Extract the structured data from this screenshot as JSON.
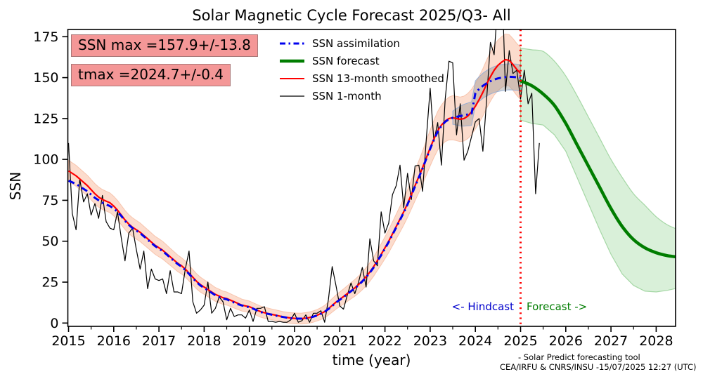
{
  "title": "Solar Magnetic Cycle Forecast 2025/Q3- All",
  "annotations": {
    "ssn_max": "SSN max =157.9+/-13.8",
    "tmax": "tmax =2024.7+/-0.4",
    "hindcast": "<- Hindcast",
    "forecast": "Forecast ->"
  },
  "footer": {
    "line1": "- Solar Predict forecasting tool",
    "line2": "CEA/IRFU & CNRS/INSU -15/07/2025 12:27 (UTC)"
  },
  "colors": {
    "assimilation": "#0000ee",
    "forecast": "#007d00",
    "smoothed": "#ff0000",
    "monthly": "#000000",
    "vline": "#ff0000",
    "orange_band": "rgba(246,140,90,0.30)",
    "green_band": "rgba(120,200,120,0.28)",
    "green_band_edge": "rgba(110,190,110,0.55)",
    "gray_band": "rgba(145,145,145,0.40)",
    "gray_band_edge": "rgba(140,170,215,0.85)",
    "hindcast_text": "#0000cc",
    "forecast_text": "#007d00",
    "box_bg": "rgba(242,128,128,0.82)"
  },
  "chart_data": {
    "type": "line",
    "title": "Solar Magnetic Cycle Forecast 2025/Q3- All",
    "xlabel": "time (year)",
    "ylabel": "SSN",
    "xlim": [
      2014.985,
      2028.43
    ],
    "ylim": [
      -2.0,
      179.4
    ],
    "xticks": [
      2015,
      2016,
      2017,
      2018,
      2019,
      2020,
      2021,
      2022,
      2023,
      2024,
      2025,
      2026,
      2027,
      2028
    ],
    "xminor_step": 0.5,
    "yticks": [
      0,
      25,
      50,
      75,
      100,
      125,
      150,
      175
    ],
    "grid": false,
    "legend_position": "upper center, no frame",
    "legend": [
      {
        "label": "SSN assimilation",
        "color": "#0000ee",
        "style": "dashdot",
        "lw": 3
      },
      {
        "label": "SSN forecast",
        "color": "#007d00",
        "style": "solid",
        "lw": 4.5
      },
      {
        "label": "SSN 13-month smoothed",
        "color": "#ff0000",
        "style": "solid",
        "lw": 2
      },
      {
        "label": "SSN 1-month",
        "color": "#000000",
        "style": "solid",
        "lw": 1.2
      }
    ],
    "vline": {
      "x": 2025.0,
      "style": "dotted",
      "color": "#ff0000",
      "meaning": "hindcast/forecast boundary"
    },
    "series": [
      {
        "name": "SSN 1-month",
        "start": 2015.0,
        "step": 0.0833333,
        "values": [
          110,
          67,
          57,
          88,
          74,
          79,
          66,
          73,
          64,
          78,
          62,
          58,
          57,
          68,
          52,
          38,
          55,
          58,
          45,
          33,
          44,
          21,
          33,
          27,
          26,
          27,
          18,
          32,
          19,
          19,
          18,
          33,
          44,
          13,
          6,
          8,
          11,
          25,
          6,
          9,
          16,
          13,
          2,
          9,
          4,
          5,
          5,
          3,
          8,
          1,
          9,
          9,
          10,
          1,
          1,
          0.5,
          1,
          0.5,
          0.5,
          2,
          6,
          0.5,
          1.5,
          5,
          0.5,
          6,
          6,
          7.5,
          0.5,
          14.5,
          34.5,
          23,
          10.5,
          8.5,
          17,
          24.5,
          18,
          25,
          34,
          22,
          51.5,
          38,
          35,
          68,
          55,
          61,
          78.5,
          84,
          96.5,
          70.5,
          91.5,
          75.5,
          96,
          96.5,
          80.5,
          113,
          143.5,
          111,
          122.5,
          96.5,
          137,
          160,
          159,
          115,
          134,
          99.5,
          105,
          114,
          123,
          125,
          105,
          136.5,
          171.5,
          164,
          196.5,
          215.5,
          141.5,
          166.5,
          152.5,
          154.5,
          137,
          154.5,
          134,
          140.5,
          79,
          110
        ]
      },
      {
        "name": "SSN 13-month smoothed",
        "start": 2015.0,
        "step": 0.0833333,
        "values": [
          93,
          91.5,
          90,
          88,
          86,
          84,
          81.5,
          79,
          77,
          75.5,
          74.5,
          73.5,
          71.5,
          69,
          66,
          63,
          60.5,
          58.5,
          57,
          55.5,
          53.5,
          51.5,
          49.5,
          47.5,
          46,
          44.5,
          42.5,
          40.5,
          38.5,
          36.5,
          35,
          33,
          30.5,
          28,
          25.5,
          23.5,
          22,
          20.5,
          19,
          17.5,
          16.5,
          15.5,
          15,
          14,
          13,
          12,
          11,
          10.5,
          10,
          9,
          8,
          7,
          6.3,
          5.8,
          5.3,
          4.8,
          4.3,
          3.8,
          3.4,
          3.1,
          2.9,
          2.8,
          2.8,
          3,
          3.4,
          4,
          4.8,
          5.8,
          7,
          8.8,
          10.8,
          12.8,
          14.5,
          16.2,
          18,
          19.8,
          21.5,
          23.5,
          25.8,
          28.3,
          31.2,
          34.5,
          38.2,
          42,
          46,
          50,
          54.5,
          59,
          63.5,
          68,
          73,
          78.5,
          84,
          89.5,
          95,
          101,
          107,
          112.5,
          117.5,
          121,
          123.5,
          125,
          125.5,
          125,
          124.5,
          125,
          126.5,
          129,
          132.5,
          136.5,
          141,
          146,
          150.5,
          154.5,
          157.5,
          159.5,
          161,
          160.5,
          158,
          155,
          152.5
        ]
      },
      {
        "name": "SSN assimilation",
        "start": 2015.0,
        "step": 0.0833333,
        "values": [
          87,
          86,
          85,
          83.5,
          82,
          80.5,
          78.5,
          76.5,
          75,
          73.5,
          72.5,
          71.5,
          70,
          68,
          65.5,
          62.5,
          60,
          58,
          56.5,
          55,
          53,
          51,
          49,
          47,
          45.5,
          44,
          42,
          40,
          38,
          36,
          34.5,
          32.5,
          30,
          27.5,
          25,
          23,
          21.5,
          20,
          18.5,
          17,
          16,
          15,
          14.5,
          13.5,
          12.5,
          11.5,
          10.8,
          10.2,
          9.7,
          8.8,
          7.8,
          6.8,
          6.1,
          5.6,
          5.1,
          4.6,
          4.1,
          3.7,
          3.3,
          3,
          2.8,
          2.7,
          2.7,
          2.9,
          3.3,
          3.9,
          4.7,
          5.7,
          6.9,
          8.6,
          10.5,
          12.5,
          14.2,
          15.9,
          17.7,
          19.5,
          21.2,
          23.2,
          25.5,
          28,
          30.8,
          34,
          37.8,
          41.5,
          45.5,
          49.5,
          54,
          58.5,
          63,
          67.5,
          72.5,
          78,
          83.5,
          89,
          94.5,
          100.5,
          106.5,
          112,
          117,
          120.5,
          123,
          124.5,
          125.5,
          126,
          126.5,
          127,
          127.5,
          128,
          140.5,
          143,
          145,
          146.5,
          147.8,
          148.8,
          149.5,
          150,
          150.3,
          150.5,
          150.4,
          150.2,
          150
        ]
      },
      {
        "name": "SSN forecast",
        "start": 2025.0,
        "step": 0.25,
        "values": [
          148,
          145,
          140,
          133,
          122,
          109,
          96,
          83,
          70,
          59,
          51,
          46,
          43,
          41.2,
          40.3
        ]
      }
    ],
    "bands": {
      "smoothed_uncertainty": {
        "around": "SSN 13-month smoothed",
        "offset_ctrl": [
          [
            2015,
            6.5
          ],
          [
            2016,
            6
          ],
          [
            2017,
            5.5
          ],
          [
            2018,
            4.5
          ],
          [
            2019,
            3.5
          ],
          [
            2019.8,
            3.2
          ],
          [
            2020.5,
            3.5
          ],
          [
            2021,
            4.5
          ],
          [
            2021.8,
            6
          ],
          [
            2022.5,
            8.5
          ],
          [
            2023,
            11
          ],
          [
            2023.5,
            13.5
          ],
          [
            2024,
            14
          ],
          [
            2024.5,
            15.5
          ],
          [
            2025,
            16
          ]
        ]
      },
      "assimilation_uncertainty": {
        "around": "SSN assimilation",
        "xrange": [
          2023.417,
          2025.0
        ],
        "offset_ctrl": [
          [
            2023.417,
            3
          ],
          [
            2023.7,
            6.5
          ],
          [
            2024,
            7.5
          ],
          [
            2024.5,
            8
          ],
          [
            2025,
            8
          ]
        ]
      },
      "forecast_uncertainty": {
        "start": 2025.0,
        "step": 0.25,
        "upper": [
          168,
          167,
          166,
          160,
          151,
          139,
          126,
          113,
          100,
          89,
          79,
          72,
          65,
          60,
          57
        ],
        "lower": [
          124,
          122,
          121,
          115,
          105,
          89,
          73,
          57,
          42,
          30,
          23,
          19.5,
          19,
          20,
          21.5
        ]
      }
    }
  }
}
